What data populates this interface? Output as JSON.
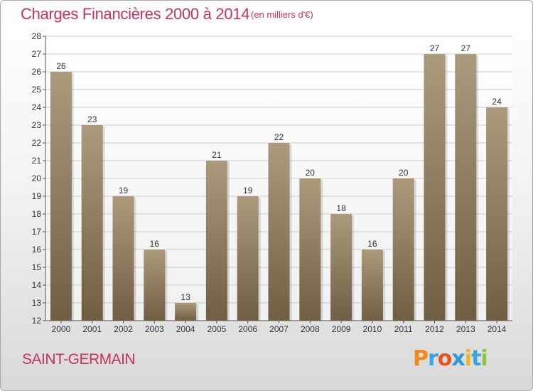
{
  "header": {
    "title": "Charges Financières 2000 à 2014",
    "unit": "(en milliers d'€)"
  },
  "footer": {
    "city": "SAINT-GERMAIN",
    "logo_letters": [
      "P",
      "r",
      "o",
      "x",
      "i",
      "t",
      "i"
    ]
  },
  "colors": {
    "title": "#c8325a",
    "bar_top": "#ab9a7c",
    "bar_bottom": "#6f5e44",
    "grid": "#cccccc",
    "axis": "#555555",
    "logo": [
      "#f08a1c",
      "#3ba5dc",
      "#e8541c",
      "#2e9ad8",
      "#f0b41c",
      "#3ba5dc",
      "#8cc63e"
    ]
  },
  "chart_data": {
    "type": "bar",
    "categories": [
      "2000",
      "2001",
      "2002",
      "2003",
      "2004",
      "2005",
      "2006",
      "2007",
      "2008",
      "2009",
      "2010",
      "2011",
      "2012",
      "2013",
      "2014"
    ],
    "values": [
      26,
      23,
      19,
      16,
      13,
      21,
      19,
      22,
      20,
      18,
      16,
      20,
      27,
      27,
      24
    ],
    "ylim": [
      12,
      28
    ],
    "yticks": [
      12,
      13,
      14,
      15,
      16,
      17,
      18,
      19,
      20,
      21,
      22,
      23,
      24,
      25,
      26,
      27,
      28
    ],
    "grid": true,
    "title": "Charges Financières 2000 à 2014",
    "xlabel": "",
    "ylabel": ""
  }
}
